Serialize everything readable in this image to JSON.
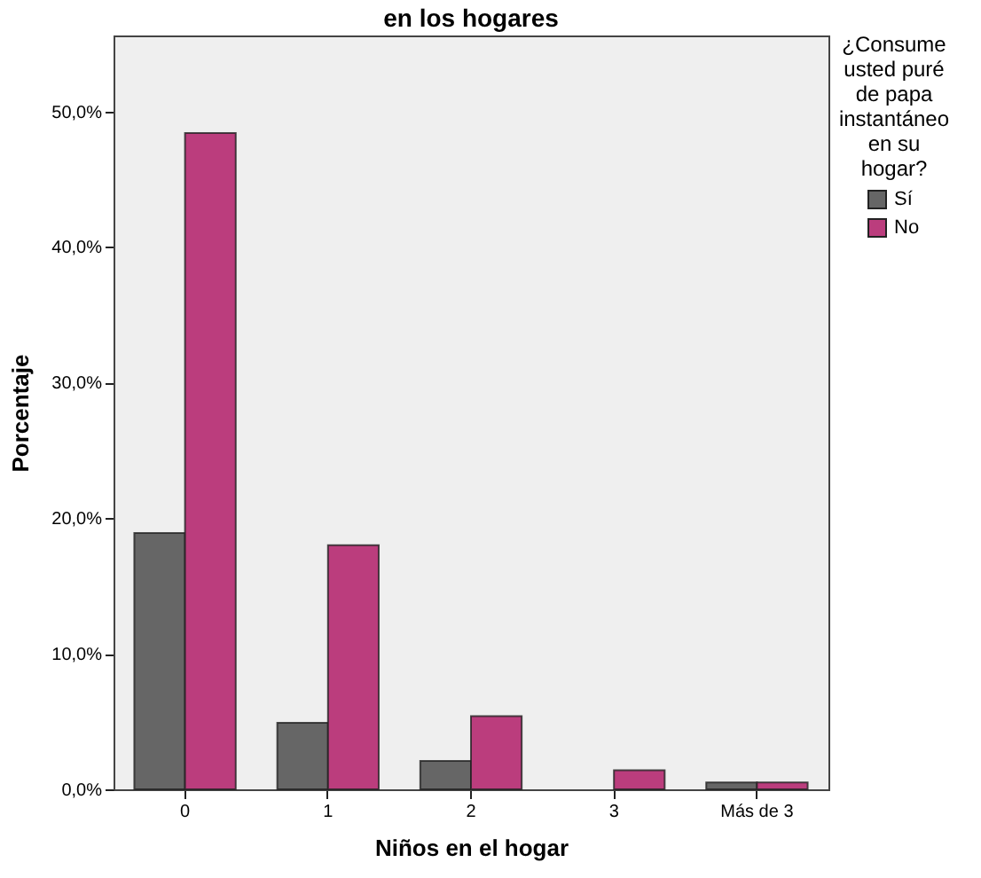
{
  "chart_data": {
    "type": "bar",
    "title": "en los hogares",
    "xlabel": "Niños en el hogar",
    "ylabel": "Porcentaje",
    "legend_title": "¿Consume usted puré de papa instantáneo en su hogar?",
    "categories": [
      "0",
      "1",
      "2",
      "3",
      "Más de 3"
    ],
    "series": [
      {
        "name": "Sí",
        "color": "#666666",
        "values": [
          18.9,
          4.9,
          2.1,
          null,
          0.5
        ]
      },
      {
        "name": "No",
        "color": "#bb3d7d",
        "values": [
          48.4,
          18.0,
          5.4,
          1.4,
          0.5
        ]
      }
    ],
    "ylim": [
      0,
      55.6
    ],
    "yticks": [
      {
        "value": 0,
        "label": "0,0%"
      },
      {
        "value": 10,
        "label": "10,0%"
      },
      {
        "value": 20,
        "label": "20,0%"
      },
      {
        "value": 30,
        "label": "30,0%"
      },
      {
        "value": 40,
        "label": "40,0%"
      },
      {
        "value": 50,
        "label": "50,0%"
      }
    ],
    "grid": false,
    "legend": "right"
  }
}
